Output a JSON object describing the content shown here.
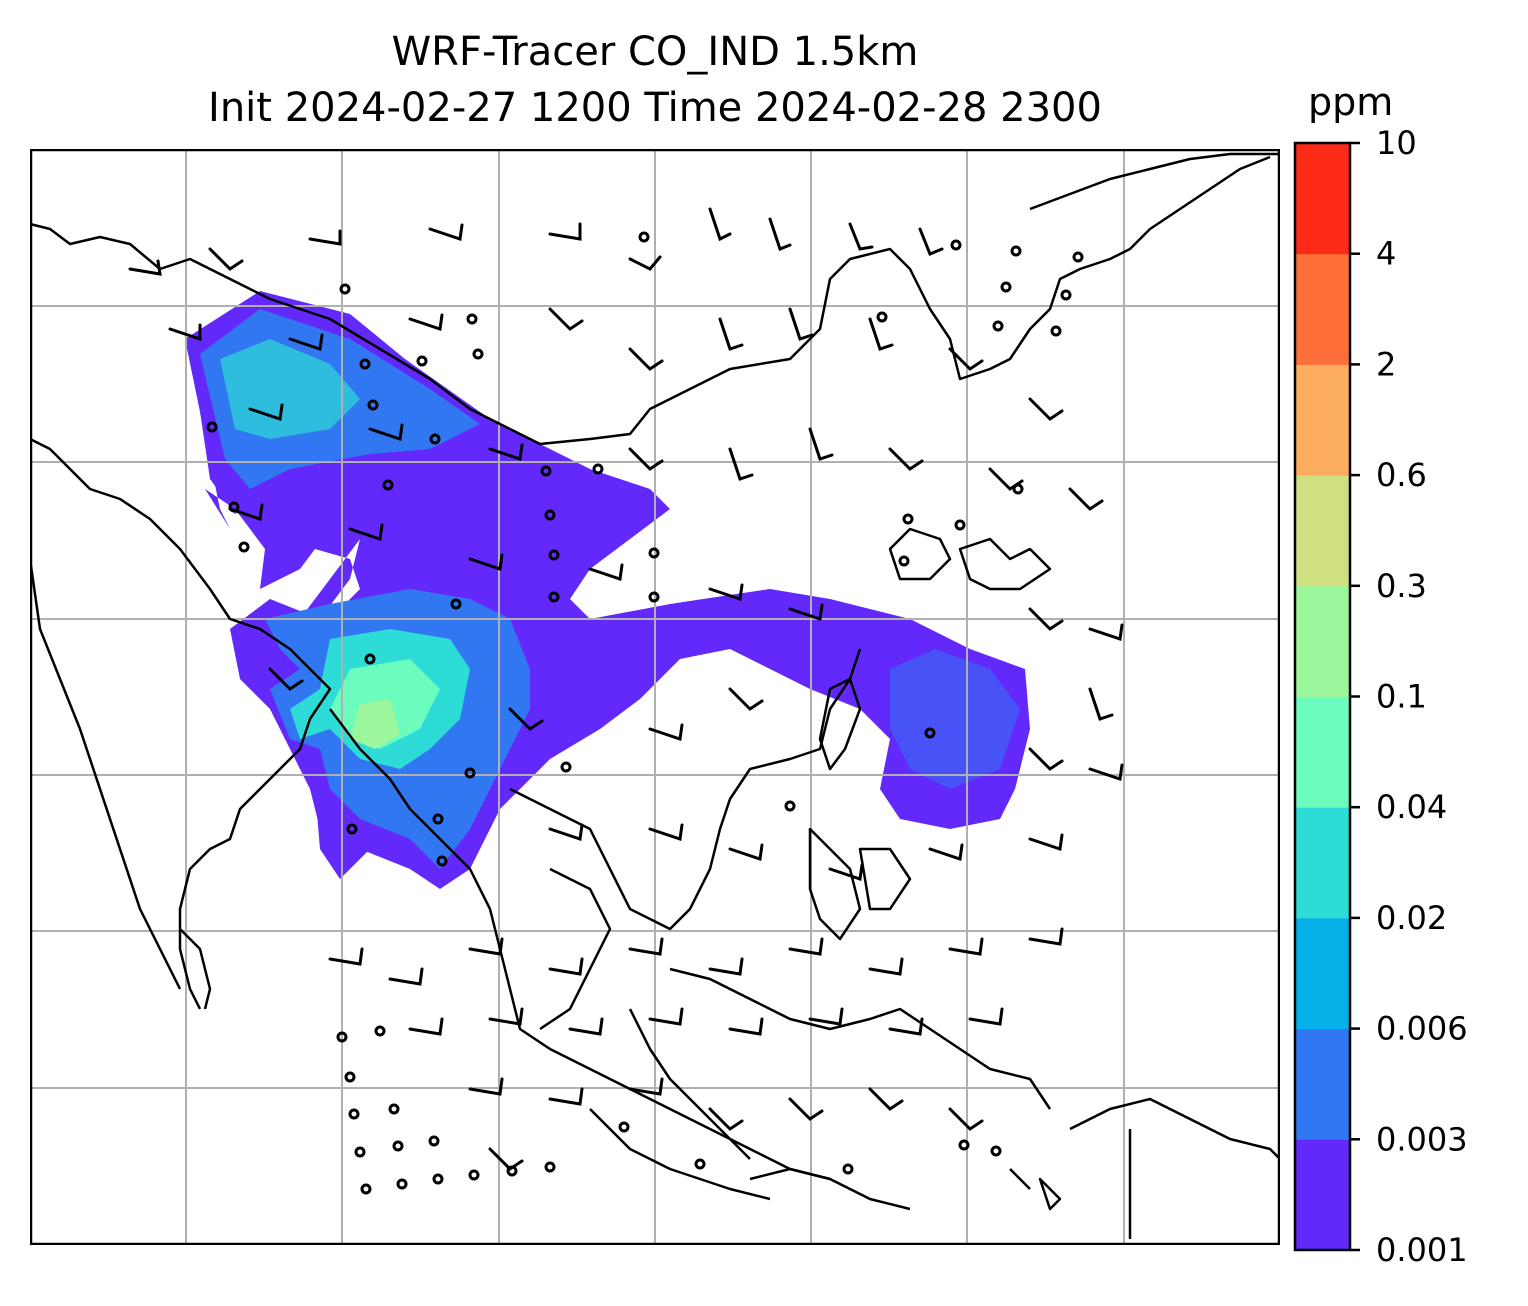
{
  "title": {
    "line1": "WRF-Tracer CO_IND 1.5km",
    "line2": "Init 2024-02-27 1200 Time 2024-02-28 2300"
  },
  "colorbar": {
    "unit": "ppm",
    "levels": [
      "0.001",
      "0.003",
      "0.006",
      "0.02",
      "0.04",
      "0.1",
      "0.3",
      "0.6",
      "2",
      "4",
      "10"
    ],
    "colors": [
      "#6229fa",
      "#3277f2",
      "#06b1ea",
      "#2ddcd6",
      "#6cfcbd",
      "#9cf79c",
      "#cfe083",
      "#fdad60",
      "#ff6f3a",
      "#fd2a17"
    ]
  },
  "map": {
    "gridlines": true,
    "coastline_color": "#000000",
    "grid_color": "#b0b0b0"
  }
}
